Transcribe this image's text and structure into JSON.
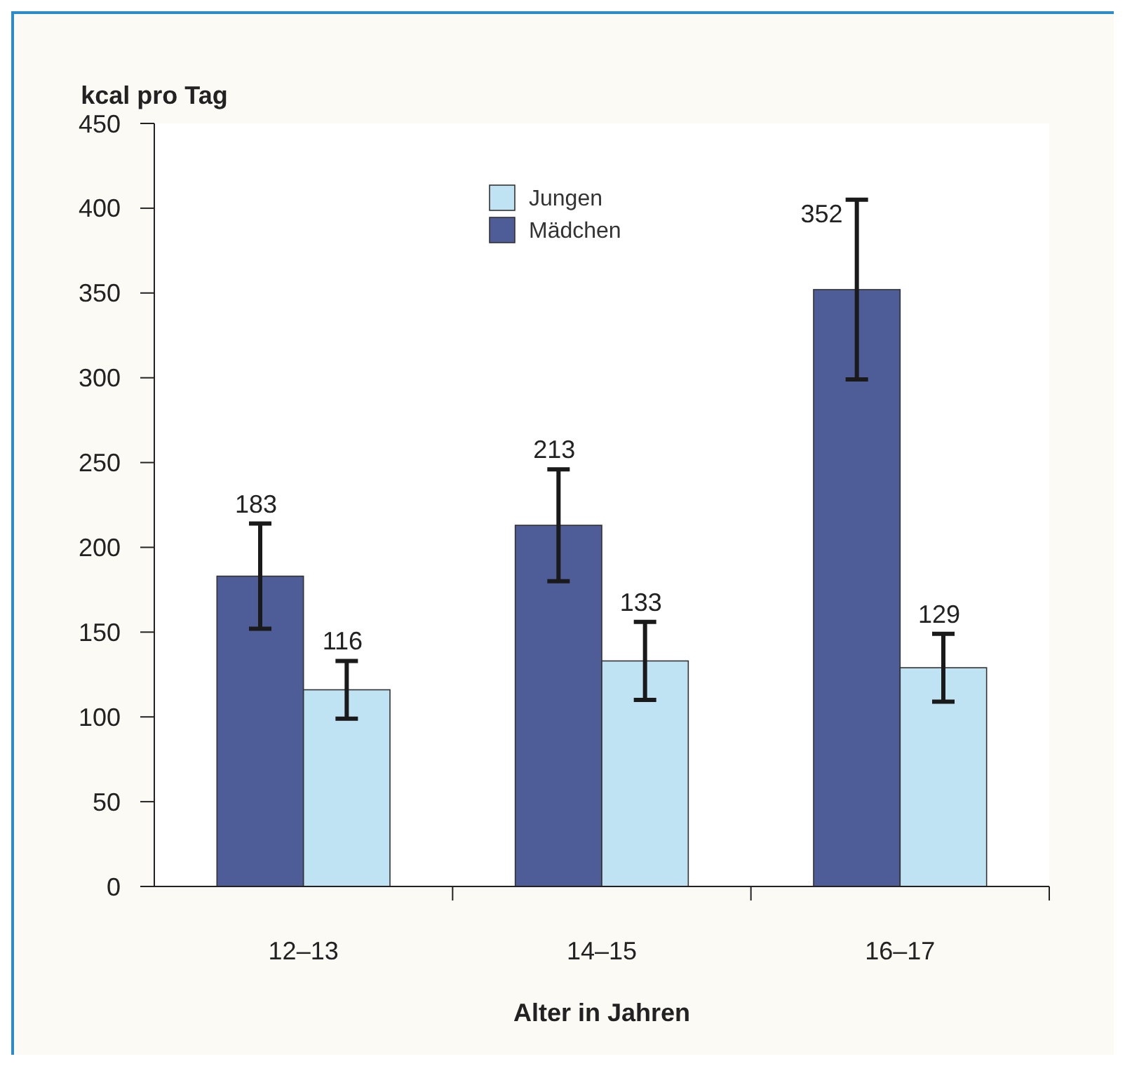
{
  "chart_data": {
    "type": "bar",
    "ylabel": "kcal pro Tag",
    "xlabel": "Alter in Jahren",
    "categories": [
      "12–13",
      "14–15",
      "16–17"
    ],
    "series": [
      {
        "name": "Mädchen",
        "color": "#4e5c98",
        "values": [
          183,
          213,
          352
        ],
        "errors": [
          31,
          33,
          53
        ]
      },
      {
        "name": "Jungen",
        "color": "#c0e3f4",
        "values": [
          116,
          133,
          129
        ],
        "errors": [
          17,
          23,
          20
        ]
      }
    ],
    "ylim": [
      0,
      450
    ],
    "yticks": [
      0,
      50,
      100,
      150,
      200,
      250,
      300,
      350,
      400,
      450
    ],
    "data_labels": true,
    "legend": "top",
    "grid": false
  }
}
